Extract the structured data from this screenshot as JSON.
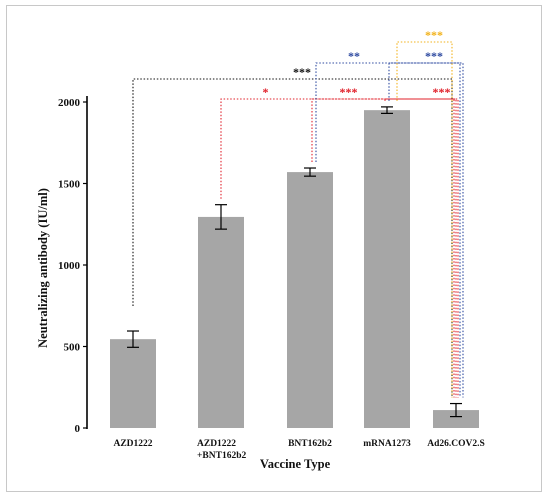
{
  "chart_data": {
    "type": "bar",
    "title": "",
    "xlabel": "Vaccine Type",
    "ylabel": "Neutralizing antibody (IU/ml)",
    "ylim": [
      0,
      2000
    ],
    "yticks": [
      0,
      500,
      1000,
      1500,
      2000
    ],
    "categories": [
      "AZD1222",
      "AZD1222\n+BNT162b2",
      "BNT162b2",
      "mRNA1273",
      "Ad26.COV2.S"
    ],
    "values": [
      545,
      1295,
      1570,
      1950,
      110
    ],
    "errors": [
      50,
      75,
      25,
      20,
      40
    ],
    "bar_color": "#a6a6a6",
    "grid": false,
    "legend": "none",
    "comparisons": [
      {
        "from": 0,
        "to": 4,
        "label": "***",
        "color": "#111111",
        "level": 2
      },
      {
        "from": 1,
        "to": 4,
        "label": "*",
        "color": "#e0202a",
        "level": 0
      },
      {
        "from": 2,
        "to": 4,
        "label": "***",
        "color": "#e0202a",
        "level": 0
      },
      {
        "from": 3,
        "to": 4,
        "label": "***",
        "color": "#e0202a",
        "level": 0
      },
      {
        "from": 2,
        "to": 4,
        "label": "**",
        "color": "#2e4aa0",
        "level": 3
      },
      {
        "from": 3,
        "to": 4,
        "label": "***",
        "color": "#2e4aa0",
        "level": 4
      },
      {
        "from": 3,
        "to": 4,
        "label": "***",
        "color": "#f2b21b",
        "level": 5
      }
    ]
  }
}
